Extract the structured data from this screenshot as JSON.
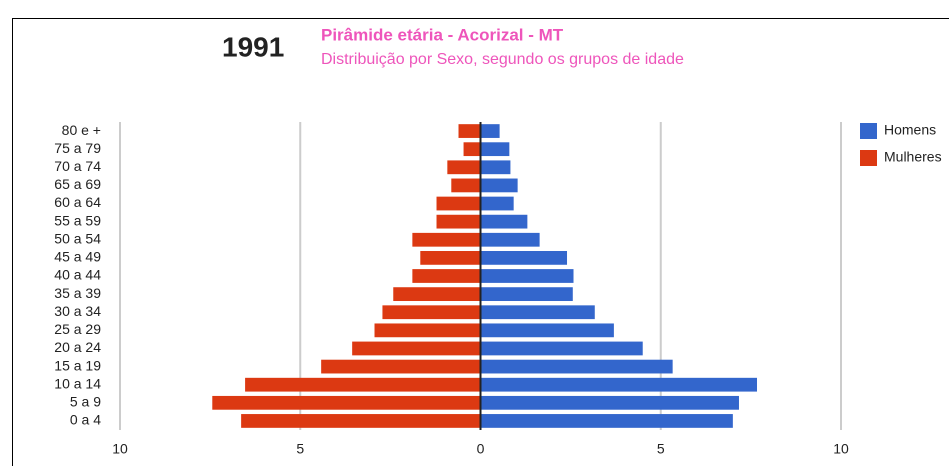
{
  "chart_data": {
    "type": "bar",
    "orientation": "horizontal",
    "stacked": false,
    "title": "1991",
    "subtitle": "Pirâmide etária - Acorizal - MT",
    "subtitle2": "Distribuição por Sexo, segundo os grupos de idade",
    "categories": [
      "80 e +",
      "75 a 79",
      "70 a 74",
      "65 a 69",
      "60 a 64",
      "55 a 59",
      "50 a 54",
      "45 a 49",
      "40 a 44",
      "35 a 39",
      "30 a 34",
      "25 a 29",
      "20 a 24",
      "15 a 19",
      "10 a 14",
      "5 a 9",
      "0 a 4"
    ],
    "series": [
      {
        "name": "Homens",
        "color": "#3366cc",
        "values": [
          0.53,
          0.8,
          0.83,
          1.03,
          0.92,
          1.3,
          1.64,
          2.4,
          2.58,
          2.56,
          3.17,
          3.7,
          4.5,
          5.33,
          7.67,
          7.17,
          7.0
        ]
      },
      {
        "name": "Mulheres",
        "color": "#dc3912",
        "values": [
          -0.61,
          -0.47,
          -0.92,
          -0.81,
          -1.22,
          -1.22,
          -1.89,
          -1.67,
          -1.89,
          -2.42,
          -2.72,
          -2.94,
          -3.56,
          -4.42,
          -6.53,
          -7.44,
          -6.64
        ]
      }
    ],
    "xlim": [
      -10,
      10
    ],
    "xticks": [
      {
        "value": -10,
        "label": "10"
      },
      {
        "value": -5,
        "label": "5"
      },
      0,
      5,
      10
    ],
    "grid": true,
    "legend": "right"
  }
}
